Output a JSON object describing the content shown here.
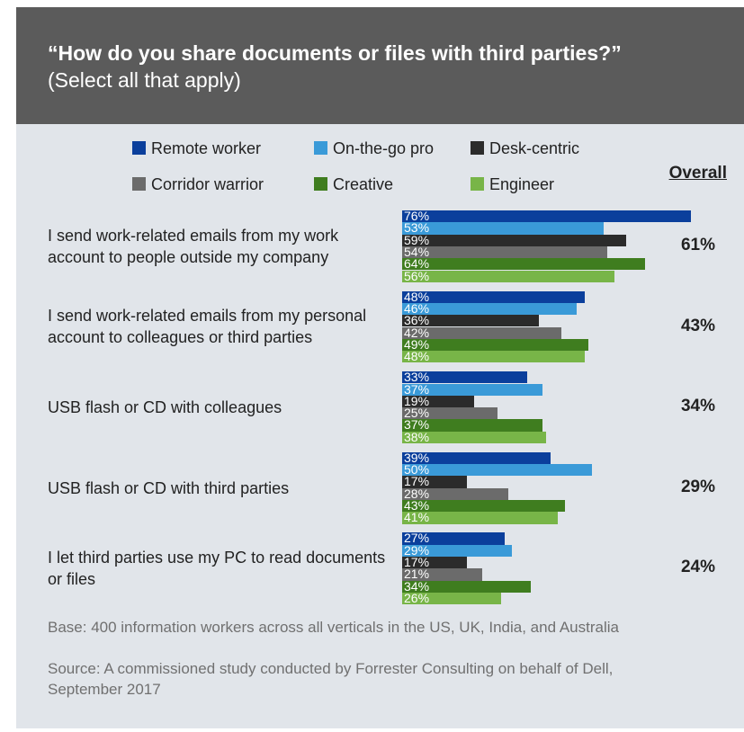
{
  "chart_data": {
    "type": "bar",
    "orientation": "horizontal",
    "title": "“How do you share documents or files with third parties?”",
    "subtitle": "(Select all that apply)",
    "categories": [
      "I send work-related emails from my work account to people outside my company",
      "I send work-related emails from my personal account to colleagues or third parties",
      "USB flash or CD with colleagues",
      "USB flash or CD with third parties",
      "I let third parties use my PC to read documents or files"
    ],
    "series": [
      {
        "name": "Remote worker",
        "color": "#0b3f9c",
        "values": [
          76,
          48,
          33,
          39,
          27
        ],
        "value_labels": [
          "76%",
          "48%",
          "33%",
          "39%",
          "27%"
        ]
      },
      {
        "name": "On-the-go pro",
        "color": "#3a9ad8",
        "values": [
          53,
          46,
          37,
          50,
          29
        ],
        "value_labels": [
          "53%",
          "46%",
          "37%",
          "50%",
          "29%"
        ]
      },
      {
        "name": "Desk-centric",
        "color": "#2b2b2b",
        "values": [
          59,
          36,
          19,
          17,
          17
        ],
        "value_labels": [
          "59%",
          "36%",
          "19%",
          "17%",
          "17%"
        ]
      },
      {
        "name": "Corridor warrior",
        "color": "#6b6b6b",
        "values": [
          54,
          42,
          25,
          28,
          21
        ],
        "value_labels": [
          "54%",
          "42%",
          "25%",
          "28%",
          "21%"
        ]
      },
      {
        "name": "Creative",
        "color": "#3f7d1f",
        "values": [
          64,
          49,
          37,
          43,
          34
        ],
        "value_labels": [
          "64%",
          "49%",
          "37%",
          "43%",
          "34%"
        ]
      },
      {
        "name": "Engineer",
        "color": "#78b548",
        "values": [
          56,
          48,
          38,
          41,
          26
        ],
        "value_labels": [
          "56%",
          "48%",
          "38%",
          "41%",
          "26%"
        ]
      }
    ],
    "overall": {
      "label": "Overall",
      "values": [
        61,
        43,
        34,
        29,
        24
      ],
      "value_labels": [
        "61%",
        "43%",
        "34%",
        "29%",
        "24%"
      ]
    },
    "xlim": [
      0,
      100
    ],
    "notes": [
      "Base: 400 information workers across all verticals in the US, UK, India, and Australia",
      "Source: A commissioned study conducted by Forrester Consulting on behalf of Dell, September 2017"
    ]
  }
}
